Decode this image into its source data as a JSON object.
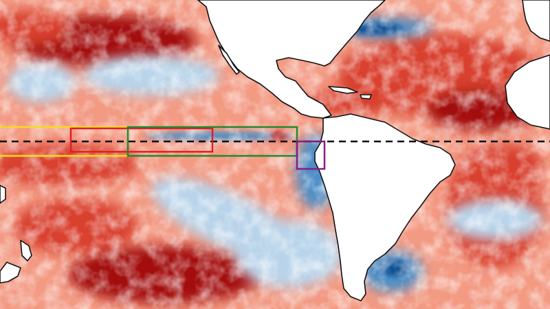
{
  "map": {
    "type": "sea-surface-temperature-anomaly",
    "colors": {
      "ocean_background": "#f39a83",
      "strong_warm": "#a30d10",
      "warm": "#d9412f",
      "mild_warm": "#f6b3a0",
      "neutral": "#f6f0ee",
      "mild_cool": "#b9d4ea",
      "cool": "#4d8fc6",
      "strong_cool": "#0d4f94",
      "land": "#ffffff",
      "coastline": "#111111"
    },
    "lines": {
      "equator": {
        "style": "dashed",
        "color": "#000000"
      }
    },
    "regions": [
      {
        "id": "yellow-box",
        "color": "#f2dd17"
      },
      {
        "id": "red-box",
        "color": "#dd1f25"
      },
      {
        "id": "green-box",
        "color": "#1f8a2c"
      },
      {
        "id": "purple-box",
        "color": "#8a1b87"
      }
    ]
  }
}
